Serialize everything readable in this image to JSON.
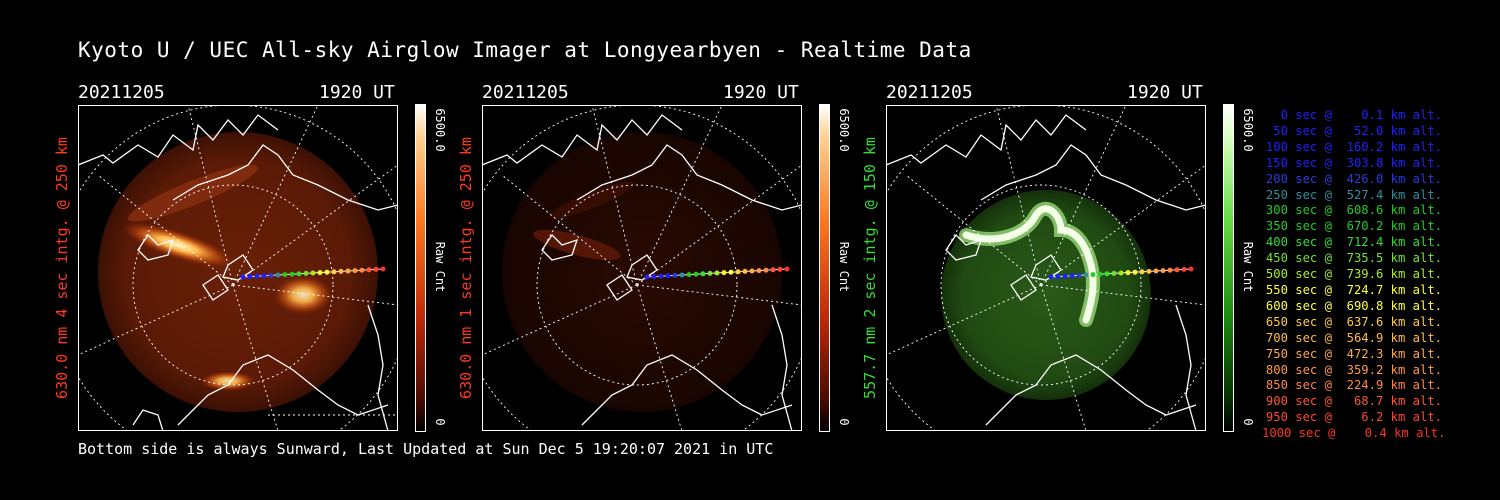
{
  "page": {
    "title": "Kyoto U / UEC All-sky Airglow Imager at Longyearbyen - Realtime Data",
    "footer": "Bottom side is always Sunward, Last Updated at Sun Dec  5 19:20:07 2021 in UTC"
  },
  "panels": [
    {
      "date": "20211205",
      "time": "1920 UT",
      "ylabel": "630.0 nm 4 sec intg. @ 250 km",
      "label_color": "#ff3a1e",
      "cbar_max": "6500.0",
      "cbar_label": "Raw Cnt",
      "cbar_min": "0"
    },
    {
      "date": "20211205",
      "time": "1920 UT",
      "ylabel": "630.0 nm 1 sec intg. @ 250 km",
      "label_color": "#ff3a1e",
      "cbar_max": "6500.0",
      "cbar_label": "Raw Cnt",
      "cbar_min": "0"
    },
    {
      "date": "20211205",
      "time": "1920 UT",
      "ylabel": "557.7 nm 2 sec intg. @ 150 km",
      "label_color": "#33dd33",
      "cbar_max": "6500.0",
      "cbar_label": "Raw Cnt",
      "cbar_min": "0"
    }
  ],
  "legend": [
    {
      "text": "0 sec @    0.1 km alt.",
      "color": "#2020ff"
    },
    {
      "text": "50 sec @   52.0 km alt.",
      "color": "#2020ff"
    },
    {
      "text": "100 sec @  160.2 km alt.",
      "color": "#2020ff"
    },
    {
      "text": "150 sec @  303.8 km alt.",
      "color": "#2020ff"
    },
    {
      "text": "200 sec @  426.0 km alt.",
      "color": "#2a3adf"
    },
    {
      "text": "250 sec @  527.4 km alt.",
      "color": "#2e8fa0"
    },
    {
      "text": "300 sec @  608.6 km alt.",
      "color": "#22cc22"
    },
    {
      "text": "350 sec @  670.2 km alt.",
      "color": "#22cc22"
    },
    {
      "text": "400 sec @  712.4 km alt.",
      "color": "#33dd33"
    },
    {
      "text": "450 sec @  735.5 km alt.",
      "color": "#77e033"
    },
    {
      "text": "500 sec @  739.6 km alt.",
      "color": "#aaee22"
    },
    {
      "text": "550 sec @  724.7 km alt.",
      "color": "#ffff33"
    },
    {
      "text": "600 sec @  690.8 km alt.",
      "color": "#ffff44"
    },
    {
      "text": "650 sec @  637.6 km alt.",
      "color": "#ffcc44"
    },
    {
      "text": "700 sec @  564.9 km alt.",
      "color": "#ffbb44"
    },
    {
      "text": "750 sec @  472.3 km alt.",
      "color": "#ffaa44"
    },
    {
      "text": "800 sec @  359.2 km alt.",
      "color": "#ff9944"
    },
    {
      "text": "850 sec @  224.9 km alt.",
      "color": "#ff8844"
    },
    {
      "text": "900 sec @   68.7 km alt.",
      "color": "#ff5533"
    },
    {
      "text": "950 sec @    6.2 km alt.",
      "color": "#ff4433"
    },
    {
      "text": "1000 sec @    0.4 km alt.",
      "color": "#ff3322"
    }
  ]
}
